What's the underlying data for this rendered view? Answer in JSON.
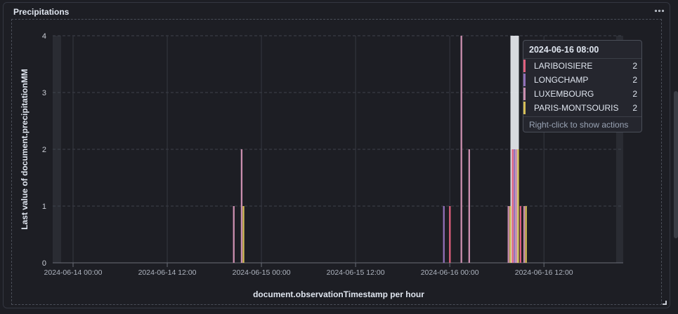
{
  "panel": {
    "title": "Precipitations"
  },
  "tooltip": {
    "header": "2024-06-16 08:00",
    "rows": [
      {
        "name": "LARIBOISIERE",
        "value": "2",
        "color": "#e0607e"
      },
      {
        "name": "LONGCHAMP",
        "value": "2",
        "color": "#9170b8"
      },
      {
        "name": "LUXEMBOURG",
        "value": "2",
        "color": "#ca8eae"
      },
      {
        "name": "PARIS-MONTSOURIS",
        "value": "2",
        "color": "#d6bf57"
      }
    ],
    "footer": "Right-click to show actions"
  },
  "chart_data": {
    "type": "bar",
    "title": "Precipitations",
    "xlabel": "document.observationTimestamp per hour",
    "ylabel": "Last value of document.precipitationMM",
    "ylim": [
      0,
      4
    ],
    "yticks": [
      "0",
      "1",
      "2",
      "3",
      "4"
    ],
    "xlim": [
      "2024-06-14 00:00",
      "2024-06-16 23:00"
    ],
    "xticks": [
      {
        "t": "2024-06-14 00:00",
        "label": "2024-06-14 00:00"
      },
      {
        "t": "2024-06-14 12:00",
        "label": "2024-06-14 12:00"
      },
      {
        "t": "2024-06-15 00:00",
        "label": "2024-06-15 00:00"
      },
      {
        "t": "2024-06-15 12:00",
        "label": "2024-06-15 12:00"
      },
      {
        "t": "2024-06-16 00:00",
        "label": "2024-06-16 00:00"
      },
      {
        "t": "2024-06-16 12:00",
        "label": "2024-06-16 12:00"
      }
    ],
    "highlight": "2024-06-16 08:00",
    "series": [
      {
        "name": "LARIBOISIERE",
        "color": "#e0607e",
        "points": [
          {
            "t": "2024-06-16 00:00",
            "y": 1
          },
          {
            "t": "2024-06-16 08:00",
            "y": 2
          },
          {
            "t": "2024-06-16 09:00",
            "y": 1
          }
        ]
      },
      {
        "name": "LONGCHAMP",
        "color": "#9170b8",
        "points": [
          {
            "t": "2024-06-15 23:00",
            "y": 1
          },
          {
            "t": "2024-06-16 08:00",
            "y": 2
          }
        ]
      },
      {
        "name": "LUXEMBOURG",
        "color": "#ca8eae",
        "points": [
          {
            "t": "2024-06-14 20:00",
            "y": 1
          },
          {
            "t": "2024-06-14 21:00",
            "y": 2
          },
          {
            "t": "2024-06-16 01:00",
            "y": 4
          },
          {
            "t": "2024-06-16 02:00",
            "y": 2
          },
          {
            "t": "2024-06-16 07:00",
            "y": 1
          },
          {
            "t": "2024-06-16 08:00",
            "y": 2
          },
          {
            "t": "2024-06-16 09:00",
            "y": 1
          }
        ]
      },
      {
        "name": "PARIS-MONTSOURIS",
        "color": "#d6bf57",
        "points": [
          {
            "t": "2024-06-14 21:00",
            "y": 1
          },
          {
            "t": "2024-06-16 07:00",
            "y": 1
          },
          {
            "t": "2024-06-16 08:00",
            "y": 2
          },
          {
            "t": "2024-06-16 09:00",
            "y": 1
          }
        ]
      }
    ]
  }
}
